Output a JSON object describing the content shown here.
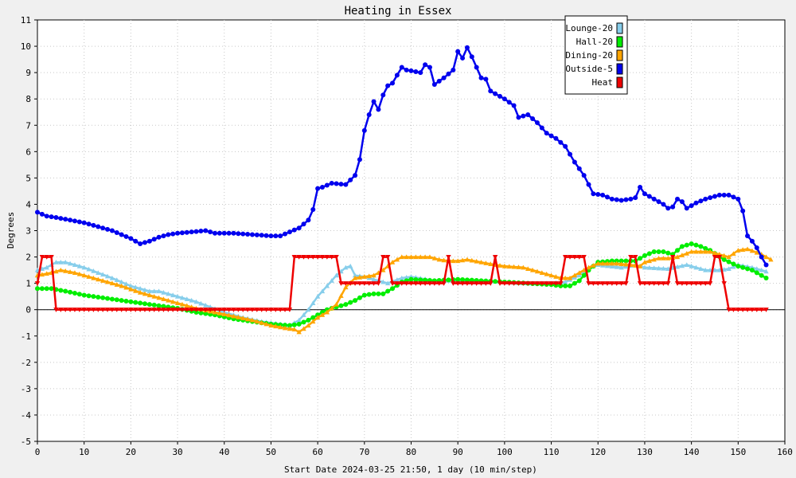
{
  "chart_data": {
    "type": "line",
    "title": "Heating in Essex",
    "xlabel": "Start Date 2024-03-25 21:50, 1 day (10 min/step)",
    "ylabel": "Degrees",
    "xlim": [
      0,
      160
    ],
    "ylim": [
      -5,
      11
    ],
    "x_ticks": [
      0,
      10,
      20,
      30,
      40,
      50,
      60,
      70,
      80,
      90,
      100,
      110,
      120,
      130,
      140,
      150,
      160
    ],
    "y_ticks": [
      -5,
      -4,
      -3,
      -2,
      -1,
      0,
      1,
      2,
      3,
      4,
      5,
      6,
      7,
      8,
      9,
      10,
      11
    ],
    "grid": true,
    "legend_position": "top-right",
    "series": [
      {
        "name": "Lounge-20",
        "color": "#87ceeb",
        "marker": "triangle",
        "points": [
          [
            0,
            1.5
          ],
          [
            2,
            1.6
          ],
          [
            4,
            1.8
          ],
          [
            6,
            1.8
          ],
          [
            8,
            1.7
          ],
          [
            10,
            1.6
          ],
          [
            13,
            1.4
          ],
          [
            16,
            1.2
          ],
          [
            20,
            0.9
          ],
          [
            24,
            0.7
          ],
          [
            26,
            0.7
          ],
          [
            30,
            0.5
          ],
          [
            34,
            0.3
          ],
          [
            37,
            0.1
          ],
          [
            40,
            -0.1
          ],
          [
            44,
            -0.3
          ],
          [
            48,
            -0.45
          ],
          [
            52,
            -0.55
          ],
          [
            54,
            -0.6
          ],
          [
            56,
            -0.4
          ],
          [
            58,
            0.0
          ],
          [
            60,
            0.5
          ],
          [
            62,
            0.9
          ],
          [
            63,
            1.1
          ],
          [
            64,
            1.3
          ],
          [
            66,
            1.6
          ],
          [
            67,
            1.65
          ],
          [
            68,
            1.3
          ],
          [
            70,
            1.25
          ],
          [
            73,
            1.1
          ],
          [
            75,
            1.0
          ],
          [
            78,
            1.2
          ],
          [
            80,
            1.25
          ],
          [
            85,
            1.1
          ],
          [
            90,
            1.1
          ],
          [
            95,
            1.1
          ],
          [
            100,
            1.05
          ],
          [
            105,
            1.0
          ],
          [
            110,
            1.0
          ],
          [
            113,
            1.05
          ],
          [
            116,
            1.3
          ],
          [
            118,
            1.6
          ],
          [
            120,
            1.7
          ],
          [
            125,
            1.6
          ],
          [
            128,
            1.7
          ],
          [
            130,
            1.6
          ],
          [
            135,
            1.55
          ],
          [
            139,
            1.7
          ],
          [
            143,
            1.5
          ],
          [
            146,
            1.5
          ],
          [
            148,
            1.55
          ],
          [
            150,
            1.7
          ],
          [
            153,
            1.6
          ],
          [
            156,
            1.45
          ]
        ]
      },
      {
        "name": "Hall-20",
        "color": "#00ee00",
        "marker": "circle",
        "points": [
          [
            0,
            0.8
          ],
          [
            3,
            0.8
          ],
          [
            6,
            0.7
          ],
          [
            10,
            0.55
          ],
          [
            14,
            0.45
          ],
          [
            18,
            0.35
          ],
          [
            22,
            0.25
          ],
          [
            26,
            0.15
          ],
          [
            30,
            0.05
          ],
          [
            34,
            -0.1
          ],
          [
            38,
            -0.2
          ],
          [
            42,
            -0.35
          ],
          [
            46,
            -0.45
          ],
          [
            50,
            -0.55
          ],
          [
            54,
            -0.6
          ],
          [
            56,
            -0.55
          ],
          [
            58,
            -0.4
          ],
          [
            60,
            -0.2
          ],
          [
            62,
            0.0
          ],
          [
            64,
            0.1
          ],
          [
            66,
            0.2
          ],
          [
            68,
            0.35
          ],
          [
            70,
            0.55
          ],
          [
            72,
            0.6
          ],
          [
            74,
            0.6
          ],
          [
            76,
            0.8
          ],
          [
            78,
            1.05
          ],
          [
            80,
            1.15
          ],
          [
            85,
            1.1
          ],
          [
            90,
            1.15
          ],
          [
            95,
            1.1
          ],
          [
            100,
            1.05
          ],
          [
            105,
            1.0
          ],
          [
            110,
            0.95
          ],
          [
            112,
            0.9
          ],
          [
            114,
            0.9
          ],
          [
            116,
            1.1
          ],
          [
            118,
            1.5
          ],
          [
            120,
            1.8
          ],
          [
            123,
            1.85
          ],
          [
            126,
            1.85
          ],
          [
            128,
            1.85
          ],
          [
            130,
            2.05
          ],
          [
            132,
            2.2
          ],
          [
            134,
            2.2
          ],
          [
            136,
            2.1
          ],
          [
            138,
            2.4
          ],
          [
            140,
            2.5
          ],
          [
            142,
            2.4
          ],
          [
            144,
            2.25
          ],
          [
            147,
            1.9
          ],
          [
            150,
            1.65
          ],
          [
            153,
            1.5
          ],
          [
            156,
            1.2
          ]
        ]
      },
      {
        "name": "Dining-20",
        "color": "#ffa500",
        "marker": "triangle",
        "points": [
          [
            0,
            1.3
          ],
          [
            3,
            1.4
          ],
          [
            5,
            1.5
          ],
          [
            8,
            1.4
          ],
          [
            10,
            1.3
          ],
          [
            14,
            1.1
          ],
          [
            18,
            0.9
          ],
          [
            22,
            0.65
          ],
          [
            26,
            0.45
          ],
          [
            30,
            0.25
          ],
          [
            34,
            0.05
          ],
          [
            38,
            -0.1
          ],
          [
            42,
            -0.25
          ],
          [
            46,
            -0.4
          ],
          [
            50,
            -0.6
          ],
          [
            53,
            -0.7
          ],
          [
            55,
            -0.75
          ],
          [
            56,
            -0.85
          ],
          [
            58,
            -0.6
          ],
          [
            60,
            -0.3
          ],
          [
            62,
            -0.1
          ],
          [
            64,
            0.2
          ],
          [
            66,
            0.85
          ],
          [
            68,
            1.2
          ],
          [
            70,
            1.25
          ],
          [
            72,
            1.3
          ],
          [
            74,
            1.5
          ],
          [
            76,
            1.8
          ],
          [
            78,
            2.0
          ],
          [
            80,
            2.0
          ],
          [
            84,
            2.0
          ],
          [
            86,
            1.9
          ],
          [
            88,
            1.85
          ],
          [
            90,
            1.85
          ],
          [
            92,
            1.9
          ],
          [
            95,
            1.8
          ],
          [
            98,
            1.7
          ],
          [
            100,
            1.65
          ],
          [
            104,
            1.6
          ],
          [
            108,
            1.4
          ],
          [
            112,
            1.2
          ],
          [
            114,
            1.2
          ],
          [
            116,
            1.4
          ],
          [
            118,
            1.6
          ],
          [
            120,
            1.75
          ],
          [
            124,
            1.75
          ],
          [
            127,
            1.7
          ],
          [
            129,
            1.65
          ],
          [
            130,
            1.8
          ],
          [
            133,
            1.95
          ],
          [
            135,
            1.95
          ],
          [
            137,
            2.0
          ],
          [
            140,
            2.2
          ],
          [
            144,
            2.2
          ],
          [
            148,
            2.0
          ],
          [
            150,
            2.25
          ],
          [
            152,
            2.3
          ],
          [
            155,
            2.1
          ],
          [
            157,
            1.9
          ]
        ]
      },
      {
        "name": "Outside-5",
        "color": "#0000ee",
        "marker": "circle",
        "points": [
          [
            0,
            3.7
          ],
          [
            2,
            3.55
          ],
          [
            4,
            3.5
          ],
          [
            7,
            3.4
          ],
          [
            10,
            3.3
          ],
          [
            13,
            3.15
          ],
          [
            16,
            3.0
          ],
          [
            18,
            2.85
          ],
          [
            20,
            2.7
          ],
          [
            22,
            2.5
          ],
          [
            24,
            2.6
          ],
          [
            26,
            2.75
          ],
          [
            28,
            2.85
          ],
          [
            30,
            2.9
          ],
          [
            33,
            2.95
          ],
          [
            36,
            3.0
          ],
          [
            38,
            2.9
          ],
          [
            42,
            2.9
          ],
          [
            46,
            2.85
          ],
          [
            50,
            2.8
          ],
          [
            52,
            2.8
          ],
          [
            54,
            2.95
          ],
          [
            56,
            3.1
          ],
          [
            58,
            3.4
          ],
          [
            59,
            3.8
          ],
          [
            60,
            4.6
          ],
          [
            61,
            4.65
          ],
          [
            63,
            4.8
          ],
          [
            66,
            4.75
          ],
          [
            68,
            5.1
          ],
          [
            69,
            5.7
          ],
          [
            70,
            6.8
          ],
          [
            71,
            7.4
          ],
          [
            72,
            7.9
          ],
          [
            73,
            7.6
          ],
          [
            74,
            8.15
          ],
          [
            75,
            8.5
          ],
          [
            76,
            8.6
          ],
          [
            77,
            8.9
          ],
          [
            78,
            9.2
          ],
          [
            79,
            9.1
          ],
          [
            82,
            9.0
          ],
          [
            83,
            9.3
          ],
          [
            84,
            9.2
          ],
          [
            85,
            8.55
          ],
          [
            87,
            8.8
          ],
          [
            89,
            9.1
          ],
          [
            90,
            9.8
          ],
          [
            91,
            9.55
          ],
          [
            92,
            9.95
          ],
          [
            93,
            9.6
          ],
          [
            94,
            9.2
          ],
          [
            95,
            8.8
          ],
          [
            96,
            8.75
          ],
          [
            97,
            8.3
          ],
          [
            98,
            8.2
          ],
          [
            100,
            8.0
          ],
          [
            102,
            7.75
          ],
          [
            103,
            7.3
          ],
          [
            105,
            7.4
          ],
          [
            107,
            7.1
          ],
          [
            109,
            6.7
          ],
          [
            111,
            6.5
          ],
          [
            113,
            6.2
          ],
          [
            114,
            5.9
          ],
          [
            115,
            5.6
          ],
          [
            117,
            5.1
          ],
          [
            118,
            4.75
          ],
          [
            119,
            4.4
          ],
          [
            121,
            4.35
          ],
          [
            123,
            4.2
          ],
          [
            125,
            4.15
          ],
          [
            127,
            4.2
          ],
          [
            128,
            4.25
          ],
          [
            129,
            4.65
          ],
          [
            130,
            4.4
          ],
          [
            132,
            4.2
          ],
          [
            133,
            4.1
          ],
          [
            134,
            4.0
          ],
          [
            135,
            3.85
          ],
          [
            136,
            3.9
          ],
          [
            137,
            4.2
          ],
          [
            138,
            4.1
          ],
          [
            139,
            3.85
          ],
          [
            141,
            4.05
          ],
          [
            143,
            4.2
          ],
          [
            145,
            4.3
          ],
          [
            146,
            4.35
          ],
          [
            148,
            4.35
          ],
          [
            150,
            4.2
          ],
          [
            151,
            3.75
          ],
          [
            152,
            2.8
          ],
          [
            153,
            2.6
          ],
          [
            154,
            2.35
          ],
          [
            155,
            2.0
          ],
          [
            156,
            1.7
          ]
        ]
      },
      {
        "name": "Heat",
        "color": "#ee0000",
        "marker": "triangle-down",
        "points": [
          [
            0,
            1
          ],
          [
            1,
            2
          ],
          [
            3,
            2
          ],
          [
            4,
            0
          ],
          [
            54,
            0
          ],
          [
            55,
            2
          ],
          [
            64,
            2
          ],
          [
            65,
            1
          ],
          [
            73,
            1
          ],
          [
            74,
            2
          ],
          [
            75,
            2
          ],
          [
            76,
            1
          ],
          [
            87,
            1
          ],
          [
            88,
            2
          ],
          [
            89,
            1
          ],
          [
            97,
            1
          ],
          [
            98,
            2
          ],
          [
            99,
            1
          ],
          [
            112,
            1
          ],
          [
            113,
            2
          ],
          [
            117,
            2
          ],
          [
            118,
            1
          ],
          [
            126,
            1
          ],
          [
            127,
            2
          ],
          [
            128,
            2
          ],
          [
            129,
            1
          ],
          [
            135,
            1
          ],
          [
            136,
            2
          ],
          [
            137,
            1
          ],
          [
            144,
            1
          ],
          [
            145,
            2
          ],
          [
            146,
            2
          ],
          [
            147,
            1
          ],
          [
            148,
            0
          ],
          [
            156,
            0
          ]
        ]
      }
    ]
  }
}
